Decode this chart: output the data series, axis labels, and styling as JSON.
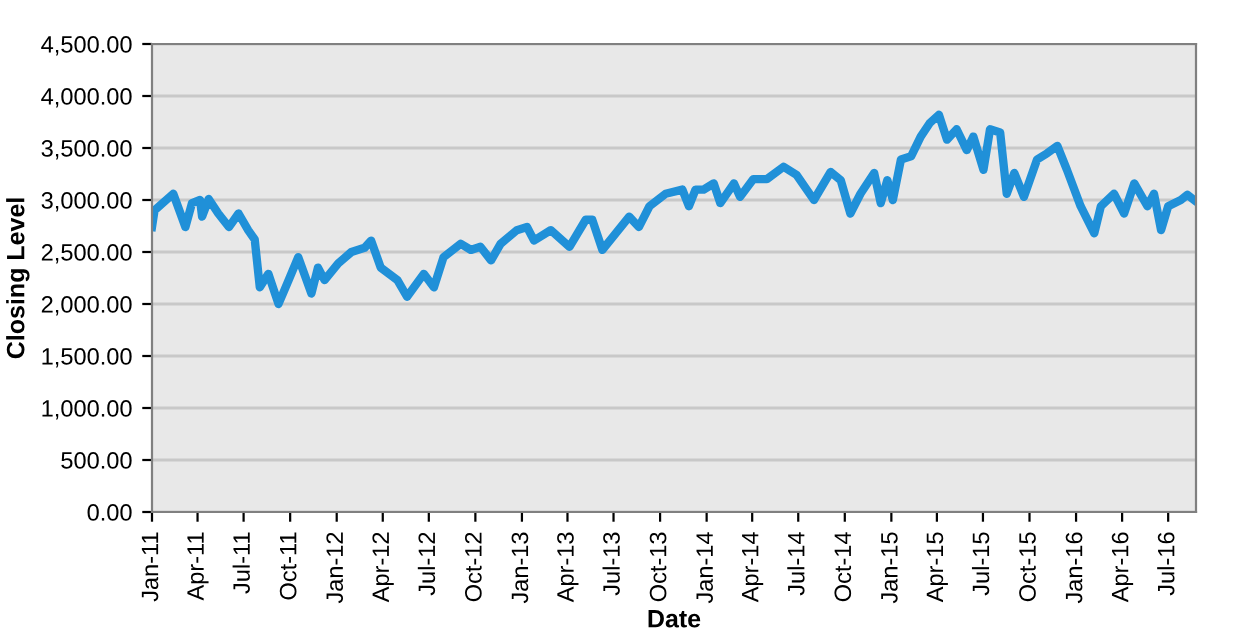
{
  "chart_data": {
    "type": "line",
    "xlabel": "Date",
    "ylabel": "Closing Level",
    "x": [
      "2011-01-01",
      "2011-01-06",
      "2011-02-12",
      "2011-03-08",
      "2011-03-21",
      "2011-04-06",
      "2011-04-10",
      "2011-04-23",
      "2011-05-12",
      "2011-06-02",
      "2011-06-21",
      "2011-07-10",
      "2011-07-23",
      "2011-08-02",
      "2011-08-19",
      "2011-09-08",
      "2011-09-28",
      "2011-10-17",
      "2011-11-12",
      "2011-11-25",
      "2011-12-08",
      "2012-01-04",
      "2012-01-30",
      "2012-02-25",
      "2012-03-09",
      "2012-03-28",
      "2012-04-30",
      "2012-05-19",
      "2012-06-21",
      "2012-07-11",
      "2012-07-30",
      "2012-09-02",
      "2012-09-22",
      "2012-10-11",
      "2012-11-01",
      "2012-11-20",
      "2012-12-22",
      "2013-01-11",
      "2013-01-25",
      "2013-02-27",
      "2013-04-05",
      "2013-05-07",
      "2013-05-20",
      "2013-06-09",
      "2013-08-01",
      "2013-08-20",
      "2013-09-10",
      "2013-10-12",
      "2013-11-14",
      "2013-11-27",
      "2013-12-10",
      "2013-12-26",
      "2014-01-15",
      "2014-01-28",
      "2014-02-24",
      "2014-03-08",
      "2014-04-03",
      "2014-04-30",
      "2014-06-02",
      "2014-06-28",
      "2014-08-01",
      "2014-09-03",
      "2014-09-23",
      "2014-10-12",
      "2014-11-01",
      "2014-11-28",
      "2014-12-11",
      "2014-12-24",
      "2015-01-04",
      "2015-01-20",
      "2015-02-09",
      "2015-02-28",
      "2015-03-18",
      "2015-04-05",
      "2015-04-21",
      "2015-05-10",
      "2015-05-30",
      "2015-06-12",
      "2015-07-02",
      "2015-07-15",
      "2015-08-04",
      "2015-08-17",
      "2015-09-01",
      "2015-09-20",
      "2015-10-16",
      "2015-11-05",
      "2015-11-25",
      "2015-12-14",
      "2016-01-10",
      "2016-02-06",
      "2016-02-19",
      "2016-03-16",
      "2016-04-05",
      "2016-04-25",
      "2016-05-21",
      "2016-06-03",
      "2016-06-17",
      "2016-07-01",
      "2016-07-26",
      "2016-08-08",
      "2016-08-21"
    ],
    "series": [
      {
        "color": "#2090d8",
        "values": [
          2740,
          2900,
          3060,
          2740,
          2970,
          3000,
          2840,
          3010,
          2870,
          2740,
          2870,
          2710,
          2620,
          2160,
          2290,
          2000,
          2230,
          2450,
          2100,
          2350,
          2230,
          2390,
          2500,
          2540,
          2610,
          2350,
          2230,
          2070,
          2290,
          2160,
          2450,
          2580,
          2520,
          2550,
          2420,
          2580,
          2710,
          2740,
          2610,
          2710,
          2550,
          2810,
          2810,
          2520,
          2840,
          2740,
          2940,
          3060,
          3100,
          2940,
          3100,
          3100,
          3160,
          2970,
          3160,
          3030,
          3200,
          3200,
          3320,
          3240,
          3000,
          3270,
          3190,
          2870,
          3060,
          3260,
          2970,
          3190,
          3000,
          3390,
          3420,
          3610,
          3740,
          3820,
          3580,
          3680,
          3480,
          3610,
          3290,
          3680,
          3650,
          3060,
          3260,
          3030,
          3390,
          3450,
          3520,
          3290,
          2940,
          2680,
          2940,
          3060,
          2870,
          3160,
          2940,
          3060,
          2710,
          2940,
          3000,
          3050,
          3000
        ]
      }
    ],
    "xlim": [
      "2011-01-01",
      "2016-08-25"
    ],
    "xticks": [
      {
        "value": "2011-01-01",
        "label": "Jan-11"
      },
      {
        "value": "2011-04-01",
        "label": "Apr-11"
      },
      {
        "value": "2011-07-01",
        "label": "Jul-11"
      },
      {
        "value": "2011-10-01",
        "label": "Oct-11"
      },
      {
        "value": "2012-01-01",
        "label": "Jan-12"
      },
      {
        "value": "2012-04-01",
        "label": "Apr-12"
      },
      {
        "value": "2012-07-01",
        "label": "Jul-12"
      },
      {
        "value": "2012-10-01",
        "label": "Oct-12"
      },
      {
        "value": "2013-01-01",
        "label": "Jan-13"
      },
      {
        "value": "2013-04-01",
        "label": "Apr-13"
      },
      {
        "value": "2013-07-01",
        "label": "Jul-13"
      },
      {
        "value": "2013-10-01",
        "label": "Oct-13"
      },
      {
        "value": "2014-01-01",
        "label": "Jan-14"
      },
      {
        "value": "2014-04-01",
        "label": "Apr-14"
      },
      {
        "value": "2014-07-01",
        "label": "Jul-14"
      },
      {
        "value": "2014-10-01",
        "label": "Oct-14"
      },
      {
        "value": "2015-01-01",
        "label": "Jan-15"
      },
      {
        "value": "2015-04-01",
        "label": "Apr-15"
      },
      {
        "value": "2015-07-01",
        "label": "Jul-15"
      },
      {
        "value": "2015-10-01",
        "label": "Oct-15"
      },
      {
        "value": "2016-01-01",
        "label": "Jan-16"
      },
      {
        "value": "2016-04-01",
        "label": "Apr-16"
      },
      {
        "value": "2016-07-01",
        "label": "Jul-16"
      }
    ],
    "ylim": [
      0,
      4500
    ],
    "yticks": [
      {
        "value": 0,
        "label": "0.00"
      },
      {
        "value": 500,
        "label": "500.00"
      },
      {
        "value": 1000,
        "label": "1,000.00"
      },
      {
        "value": 1500,
        "label": "1,500.00"
      },
      {
        "value": 2000,
        "label": "2,000.00"
      },
      {
        "value": 2500,
        "label": "2,500.00"
      },
      {
        "value": 3000,
        "label": "3,000.00"
      },
      {
        "value": 3500,
        "label": "3,500.00"
      },
      {
        "value": 4000,
        "label": "4,000.00"
      },
      {
        "value": 4500,
        "label": "4,500.00"
      }
    ],
    "grid": "y",
    "marker": "none",
    "line_style": "solid"
  }
}
